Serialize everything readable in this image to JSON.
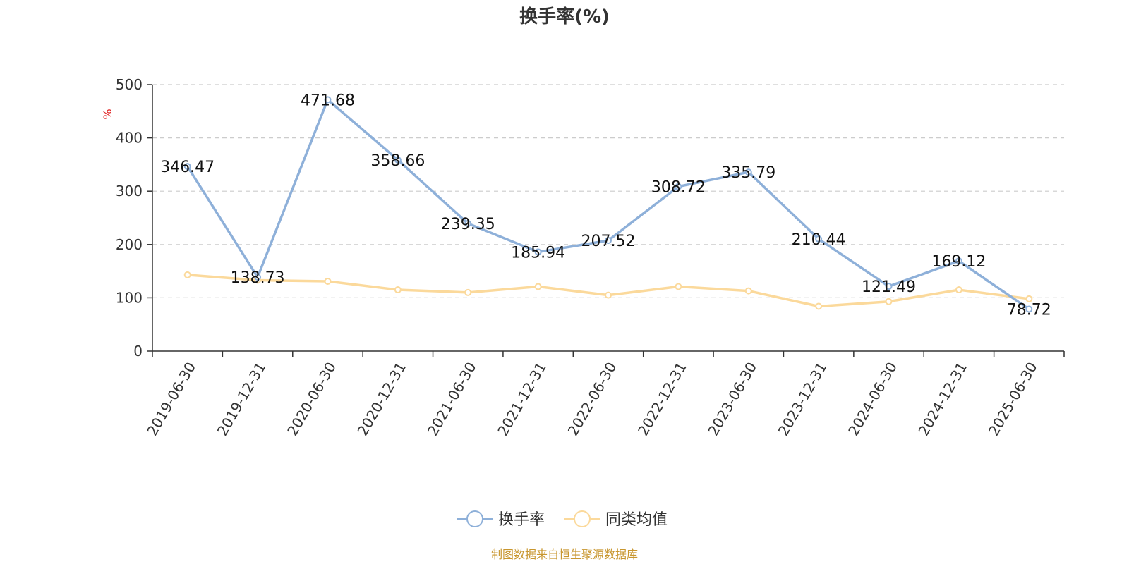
{
  "chart_data": {
    "type": "line",
    "title": "换手率(%)",
    "ylabel": "%",
    "ylim": [
      0,
      500
    ],
    "yticks": [
      0,
      100,
      200,
      300,
      400,
      500
    ],
    "grid": true,
    "legend_position": "bottom",
    "categories": [
      "2019-06-30",
      "2019-12-31",
      "2020-06-30",
      "2020-12-31",
      "2021-06-30",
      "2021-12-31",
      "2022-06-30",
      "2022-12-31",
      "2023-06-30",
      "2023-12-31",
      "2024-06-30",
      "2024-12-31",
      "2025-06-30"
    ],
    "series": [
      {
        "name": "换手率",
        "color": "#8eb0d9",
        "show_labels": true,
        "values": [
          346.47,
          138.73,
          471.68,
          358.66,
          239.35,
          185.94,
          207.52,
          308.72,
          335.79,
          210.44,
          121.49,
          169.12,
          78.72
        ]
      },
      {
        "name": "同类均值",
        "color": "#fbd99b",
        "show_labels": false,
        "values": [
          143,
          133,
          131,
          115,
          110,
          121,
          105,
          121,
          113,
          84,
          93,
          115,
          98
        ]
      }
    ],
    "source": "制图数据来自恒生聚源数据库",
    "source_color": "#c8962e",
    "ylabel_color": "#e02020"
  }
}
